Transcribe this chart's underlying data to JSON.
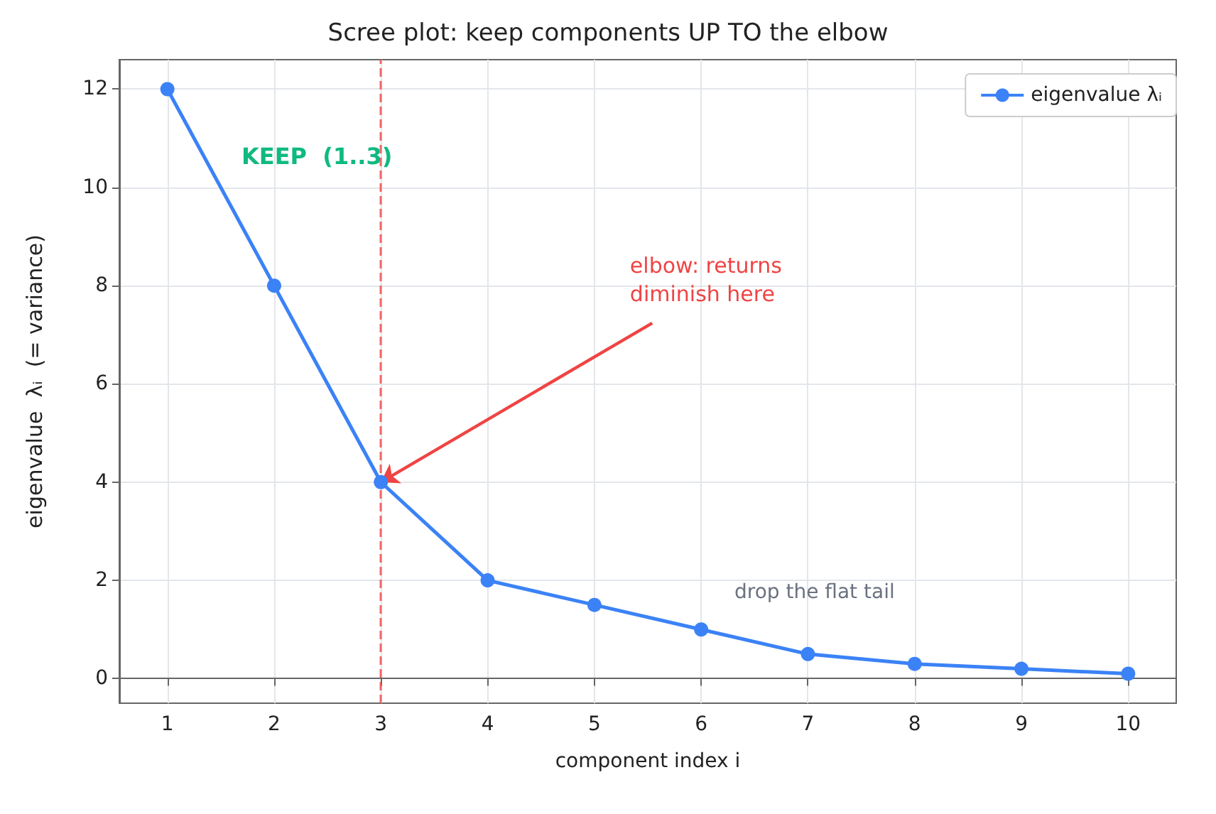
{
  "chart_data": {
    "type": "line",
    "title": "Scree plot: keep components UP TO the elbow",
    "xlabel": "component index i",
    "ylabel": "eigenvalue  λᵢ  (= variance)",
    "x": [
      1,
      2,
      3,
      4,
      5,
      6,
      7,
      8,
      9,
      10
    ],
    "series": [
      {
        "name": "eigenvalue λᵢ",
        "color": "#3b82f6",
        "values": [
          12,
          8,
          4,
          2,
          1.5,
          1,
          0.5,
          0.3,
          0.2,
          0.1
        ]
      }
    ],
    "xlim": [
      0.55,
      10.45
    ],
    "xticks": [
      1,
      2,
      3,
      4,
      5,
      6,
      7,
      8,
      9,
      10
    ],
    "ylim": [
      -0.5,
      12.6
    ],
    "yticks": [
      0,
      2,
      4,
      6,
      8,
      10,
      12
    ],
    "ref_lines": [
      {
        "axis": "x",
        "value": 3,
        "color": "#ef4444",
        "line_style": "dashed"
      }
    ],
    "annotations": [
      "KEEP  (1..3)",
      {
        "text": "elbow: returns\ndiminish here",
        "x": 3,
        "y": 4
      },
      "drop the flat tail"
    ],
    "grid": true,
    "legend": "top right",
    "marker": "circle",
    "line_style": "solid"
  }
}
